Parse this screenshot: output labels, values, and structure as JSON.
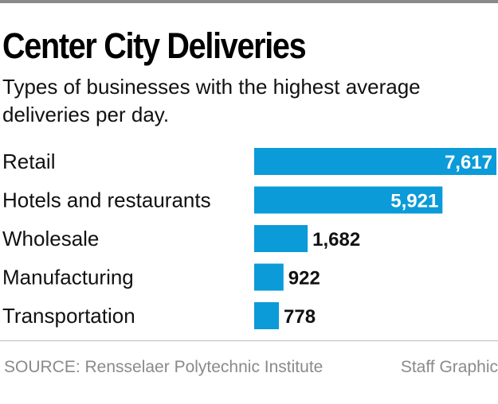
{
  "chart_data": {
    "type": "bar",
    "orientation": "horizontal",
    "title": "Center City Deliveries",
    "subtitle": "Types of businesses with the highest average deliveries per day.",
    "categories": [
      "Retail",
      "Hotels and restaurants",
      "Wholesale",
      "Manufacturing",
      "Transportation"
    ],
    "values": [
      7617,
      5921,
      1682,
      922,
      778
    ],
    "value_labels": [
      "7,617",
      "5,921",
      "1,682",
      "922",
      "778"
    ],
    "xlim": [
      0,
      7617
    ],
    "grid": false,
    "bar_color": "#0b9bd8"
  },
  "footer": {
    "source": "SOURCE: Rensselaer Polytechnic Institute",
    "credit": "Staff Graphic"
  }
}
